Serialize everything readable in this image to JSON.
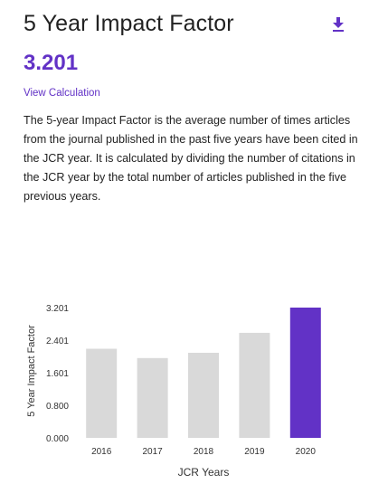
{
  "header": {
    "title": "5 Year Impact Factor",
    "download_icon": "download-icon"
  },
  "metric": {
    "value": "3.201",
    "view_calculation": "View Calculation",
    "description": "The 5-year Impact Factor is the average number of times articles from the journal published in the past five years have been cited in the JCR year. It is calculated by dividing the number of citations in the JCR year by the total number of articles published in the five previous years."
  },
  "colors": {
    "accent": "#6232c6",
    "bar_default": "#d9d9d9",
    "axis_text": "#333333"
  },
  "chart_data": {
    "type": "bar",
    "categories": [
      "2016",
      "2017",
      "2018",
      "2019",
      "2020"
    ],
    "values": [
      2.19,
      1.96,
      2.09,
      2.58,
      3.201
    ],
    "highlight_index": 4,
    "ylabel": "5 Year Impact Factor",
    "xlabel": "JCR Years",
    "ylim": [
      0,
      3.201
    ],
    "yticks": [
      "0.000",
      "0.800",
      "1.601",
      "2.401",
      "3.201"
    ],
    "grid": false
  }
}
